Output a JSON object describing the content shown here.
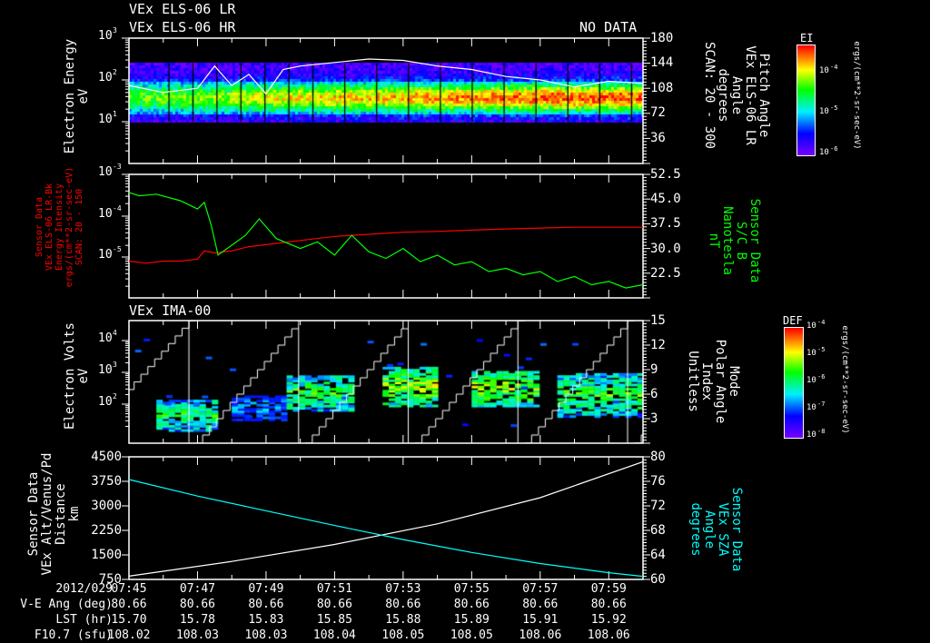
{
  "header": {
    "title1": "VEx ELS-06 LR",
    "title2": "VEx ELS-06 HR",
    "no_data": "NO DATA"
  },
  "colors": {
    "red": "#ff0000",
    "green": "#00ff00",
    "cyan": "#00ffff",
    "white": "#ffffff"
  },
  "chart_data": [
    {
      "type": "heatmap",
      "name": "ELS spectrogram",
      "ylabel": "Electron Energy\neV",
      "yticks": [
        "10",
        "10",
        "10"
      ],
      "yexp": [
        "3",
        "2",
        "1"
      ],
      "ylim": [
        3,
        1000
      ],
      "right_axis": {
        "label": "Pitch Angle\nVEx ELS-06 LR\nAngle\ndegrees\nSCAN: 20 - 300",
        "ticks": [
          "180",
          "144",
          "108",
          "72",
          "36"
        ],
        "ylim": [
          0,
          180
        ]
      },
      "colorbar": {
        "title": "EI",
        "ticks": [
          "10",
          "10",
          "10"
        ],
        "exp": [
          "-4",
          "-5",
          "-6"
        ],
        "unit": "ergs/(cm**2-sr-sec-eV)"
      },
      "energy_band_eV": [
        10,
        250
      ],
      "overlay_pitch_angle": [
        [
          0,
          112
        ],
        [
          1,
          102
        ],
        [
          2,
          108
        ],
        [
          2.5,
          140
        ],
        [
          3,
          112
        ],
        [
          3.5,
          128
        ],
        [
          4,
          100
        ],
        [
          4.5,
          135
        ],
        [
          5,
          140
        ],
        [
          6,
          145
        ],
        [
          7,
          150
        ],
        [
          8,
          148
        ],
        [
          9,
          140
        ],
        [
          10,
          135
        ],
        [
          11,
          125
        ],
        [
          12,
          120
        ],
        [
          13,
          110
        ],
        [
          14,
          118
        ],
        [
          15,
          115
        ]
      ]
    },
    {
      "type": "line",
      "name": "B field and intensity",
      "ylabel": "Sensor Data\nVEx ELS-06 LR-Bk\nEnergy Intensity\nergs/(cm**2-sr-sec-eV)\nSCAN: 20 - 150",
      "yticks": [
        "10",
        "10",
        "10"
      ],
      "yexp": [
        "-3",
        "-4",
        "-5"
      ],
      "right_axis": {
        "label": "Sensor Data\nS/C B\nNanotesla\nnT",
        "ticks": [
          "52.5",
          "45.0",
          "37.5",
          "30.0",
          "22.5"
        ],
        "ylim": [
          15,
          52.5
        ]
      },
      "series": [
        {
          "name": "Energy Intensity",
          "color": "red",
          "axis": "left",
          "x": [
            0,
            0.5,
            1,
            1.5,
            2,
            2.2,
            2.5,
            3,
            3.5,
            4,
            5,
            6,
            7,
            8,
            9,
            10,
            11,
            12,
            13,
            14,
            15
          ],
          "y": [
            -5.1,
            -5.15,
            -5.1,
            -5.1,
            -5.05,
            -4.85,
            -4.9,
            -4.85,
            -4.75,
            -4.7,
            -4.6,
            -4.5,
            -4.45,
            -4.4,
            -4.38,
            -4.35,
            -4.32,
            -4.3,
            -4.28,
            -4.28,
            -4.28
          ]
        },
        {
          "name": "S/C B",
          "color": "green",
          "axis": "right",
          "x": [
            0,
            0.3,
            0.8,
            1.5,
            2,
            2.2,
            2.4,
            2.6,
            3,
            3.4,
            3.8,
            4.3,
            5,
            5.5,
            6,
            6.5,
            7,
            7.5,
            8,
            8.5,
            9,
            9.5,
            10,
            10.5,
            11,
            11.5,
            12,
            12.5,
            13,
            13.5,
            14,
            14.5,
            15
          ],
          "y": [
            47,
            46,
            46.5,
            44.5,
            42,
            44,
            37,
            28,
            31,
            34,
            39,
            33,
            30,
            32,
            28,
            34,
            29,
            27,
            30,
            26,
            28,
            25,
            26,
            23,
            24,
            22,
            23,
            20,
            21.5,
            19,
            20,
            18,
            19
          ]
        }
      ]
    },
    {
      "type": "heatmap",
      "name": "IMA spectrogram",
      "title": "VEx IMA-00",
      "ylabel": "Electron Volts\neV",
      "yticks": [
        "10",
        "10",
        "10"
      ],
      "yexp": [
        "4",
        "3",
        "2"
      ],
      "right_axis": {
        "label": "Mode\nPolar Angle\nIndex\nUnitless",
        "ticks": [
          "15",
          "12",
          "9",
          "6",
          "3"
        ],
        "ylim": [
          0,
          15
        ]
      },
      "colorbar": {
        "title": "DEF",
        "ticks": [
          "10",
          "10",
          "10",
          "10",
          "10"
        ],
        "exp": [
          "-4",
          "-5",
          "-6",
          "-7",
          "-8"
        ],
        "unit": "ergs/(cm**2-sr-sec-eV)"
      },
      "mode_resets_min": [
        1.75,
        4.95,
        8.15,
        11.35,
        14.55
      ]
    },
    {
      "type": "line",
      "name": "Altitude and SZA",
      "ylabel": "Sensor Data\nVEx Alt/Venus/Pd\nDistance\nkm",
      "yticks": [
        "4500",
        "3750",
        "3000",
        "2250",
        "1500",
        "750"
      ],
      "ylim": [
        750,
        4500
      ],
      "right_axis": {
        "label": "Sensor Data\nVEx SZA\nAngle\ndegrees",
        "ticks": [
          "80",
          "76",
          "72",
          "68",
          "64",
          "60"
        ],
        "ylim": [
          60,
          80
        ]
      },
      "series": [
        {
          "name": "Altitude",
          "color": "white",
          "axis": "left",
          "x": [
            0,
            3,
            6,
            9,
            12,
            15
          ],
          "y": [
            850,
            1300,
            1820,
            2450,
            3250,
            4350
          ]
        },
        {
          "name": "SZA",
          "color": "cyan",
          "axis": "right",
          "x": [
            0,
            2,
            4,
            6,
            8,
            10,
            12,
            14,
            15
          ],
          "y": [
            76.3,
            73.6,
            71.2,
            68.8,
            66.5,
            64.4,
            62.6,
            61.1,
            60.5
          ]
        }
      ]
    }
  ],
  "xaxis": {
    "row_labels": [
      "2012/029",
      "V-E Ang (deg)",
      "LST (hr)",
      "F10.7 (sfu)"
    ],
    "columns": [
      {
        "time": "07:45",
        "ang": "80.66",
        "lst": "15.70",
        "f107": "108.02"
      },
      {
        "time": "07:47",
        "ang": "80.66",
        "lst": "15.78",
        "f107": "108.03"
      },
      {
        "time": "07:49",
        "ang": "80.66",
        "lst": "15.83",
        "f107": "108.03"
      },
      {
        "time": "07:51",
        "ang": "80.66",
        "lst": "15.85",
        "f107": "108.04"
      },
      {
        "time": "07:53",
        "ang": "80.66",
        "lst": "15.88",
        "f107": "108.05"
      },
      {
        "time": "07:55",
        "ang": "80.66",
        "lst": "15.89",
        "f107": "108.05"
      },
      {
        "time": "07:57",
        "ang": "80.66",
        "lst": "15.91",
        "f107": "108.06"
      },
      {
        "time": "07:59",
        "ang": "80.66",
        "lst": "15.92",
        "f107": "108.06"
      }
    ]
  }
}
